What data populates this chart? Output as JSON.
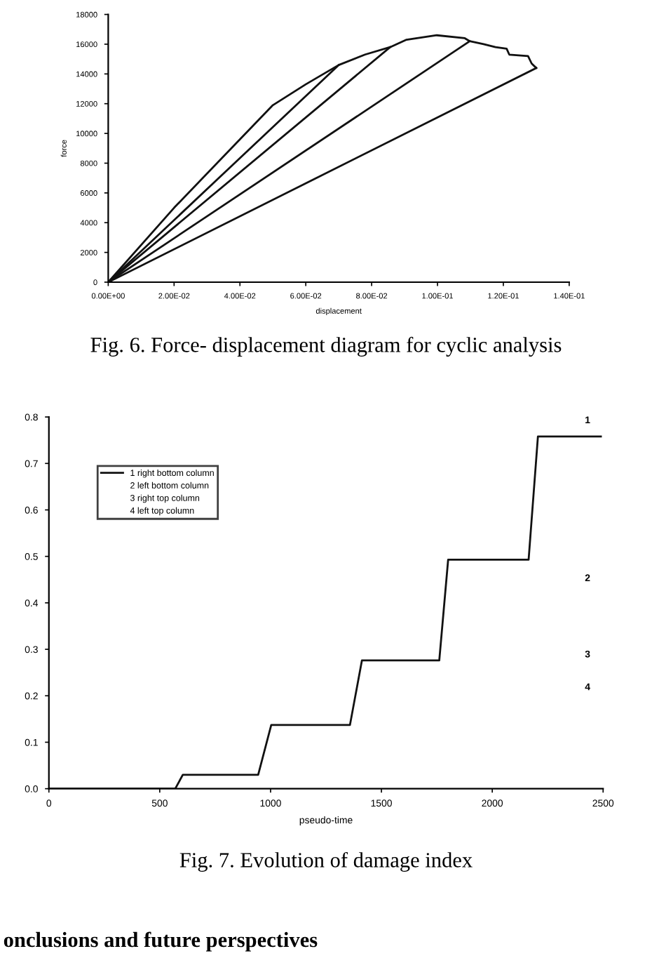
{
  "chart_data": [
    {
      "type": "line",
      "xlabel": "displacement",
      "ylabel": "force",
      "annotations": [
        "Fig. 6. Force- displacement diagram for cyclic analysis"
      ],
      "series": [
        {
          "color": "#111111",
          "x": [
            0,
            0.02,
            0.04,
            0.05,
            0.06,
            0.07,
            0.078,
            0.0856,
            0.0906,
            0.0998,
            0.1083,
            0.1098,
            0.114,
            0.1176,
            0.121,
            0.1218,
            0.1275,
            0.1286,
            0.13
          ],
          "values": [
            0,
            5000,
            9600,
            11900,
            13300,
            14600,
            15300,
            15800,
            16300,
            16600,
            16400,
            16200,
            16000,
            15800,
            15700,
            15300,
            15200,
            14700,
            14400
          ]
        },
        {
          "color": "#111111",
          "x": [
            0,
            0.07
          ],
          "values": [
            0,
            14600
          ]
        },
        {
          "color": "#111111",
          "x": [
            0,
            0.0856
          ],
          "values": [
            0,
            15800
          ]
        },
        {
          "color": "#111111",
          "x": [
            0,
            0.1098
          ],
          "values": [
            0,
            16200
          ]
        },
        {
          "color": "#111111",
          "x": [
            0,
            0.13
          ],
          "values": [
            0,
            14400
          ]
        }
      ],
      "xlim": [
        0,
        0.14
      ],
      "ylim": [
        0,
        18000
      ],
      "xticks": [
        {
          "value": 0,
          "label": "0.00E+00"
        },
        {
          "value": 0.02,
          "label": "2.00E-02"
        },
        {
          "value": 0.04,
          "label": "4.00E-02"
        },
        {
          "value": 0.06,
          "label": "6.00E-02"
        },
        {
          "value": 0.08,
          "label": "8.00E-02"
        },
        {
          "value": 0.1,
          "label": "1.00E-01"
        },
        {
          "value": 0.12,
          "label": "1.20E-01"
        },
        {
          "value": 0.14,
          "label": "1.40E-01"
        }
      ],
      "yticks": [
        0,
        2000,
        4000,
        6000,
        8000,
        10000,
        12000,
        14000,
        16000,
        18000
      ],
      "grid": false,
      "legend": false,
      "marker": "none",
      "line_style": "solid"
    },
    {
      "type": "line",
      "xlabel": "pseudo-time",
      "annotations": [
        "Fig. 7. Evolution of damage index",
        "onclusions and future perspectives",
        "1",
        "2",
        "3",
        "4"
      ],
      "series": [
        {
          "name": "1 right bottom column",
          "color": "#111111",
          "x": [
            0,
            570,
            604,
            944,
            1003,
            1358,
            1412,
            1761,
            1801,
            2164,
            2206,
            2490
          ],
          "values": [
            0,
            0,
            0.03,
            0.03,
            0.137,
            0.137,
            0.276,
            0.276,
            0.493,
            0.493,
            0.758,
            0.758
          ]
        },
        {
          "name": "2 left bottom column"
        },
        {
          "name": "3 right top column"
        },
        {
          "name": "4 left top column"
        }
      ],
      "xlim": [
        0,
        2500
      ],
      "ylim": [
        0,
        0.8
      ],
      "xticks": [
        0,
        500,
        1000,
        1500,
        2000,
        2500
      ],
      "yticks": [
        {
          "value": 0,
          "label": "0.0"
        },
        {
          "value": 0.1,
          "label": "0.1"
        },
        {
          "value": 0.2,
          "label": "0.2"
        },
        {
          "value": 0.3,
          "label": "0.3"
        },
        {
          "value": 0.4,
          "label": "0.4"
        },
        {
          "value": 0.5,
          "label": "0.5"
        },
        {
          "value": 0.6,
          "label": "0.6"
        },
        {
          "value": 0.7,
          "label": "0.7"
        },
        {
          "value": 0.8,
          "label": "0.8"
        }
      ],
      "grid": false,
      "legend": "top left",
      "marker": "none",
      "line_style": "solid"
    }
  ]
}
